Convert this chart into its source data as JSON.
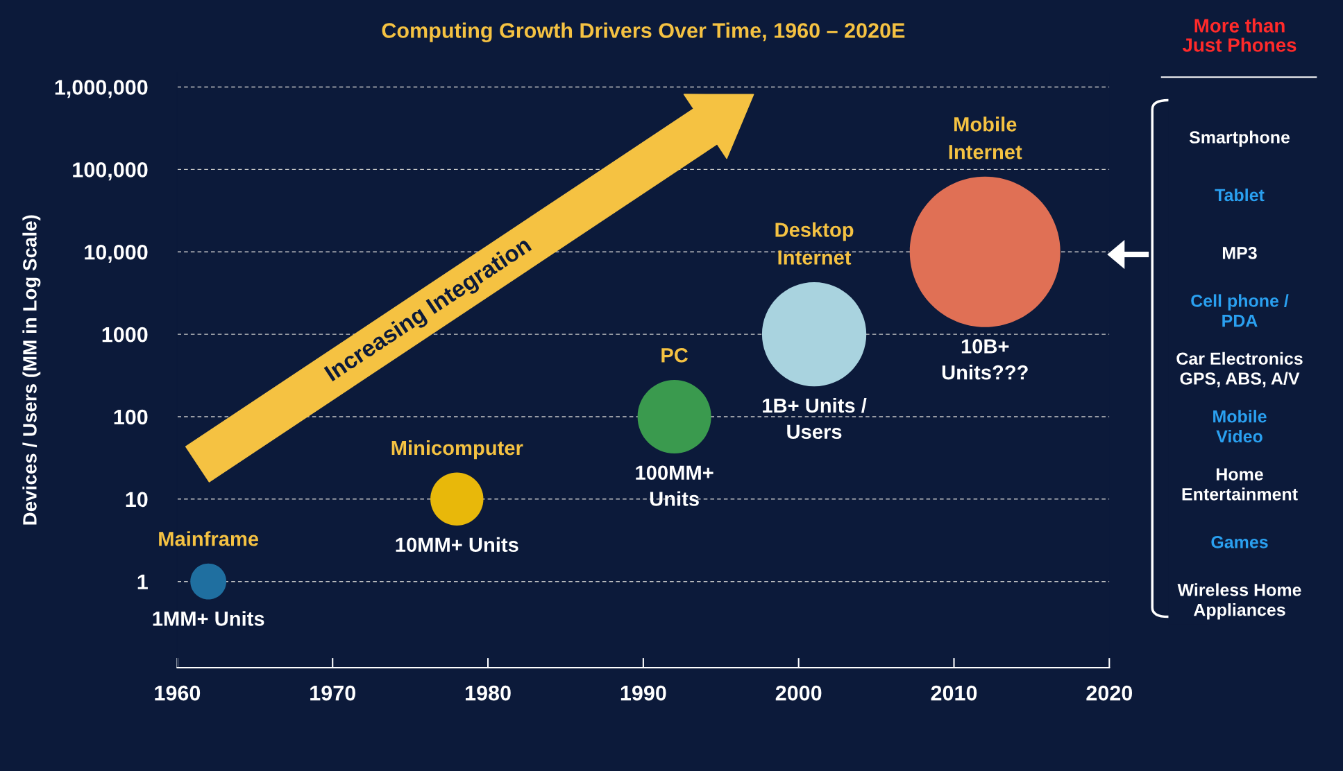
{
  "chart_data": {
    "type": "bubble",
    "title": "Computing Growth Drivers Over Time, 1960 – 2020E",
    "ylabel": "Devices / Users (MM in Log Scale)",
    "series": [
      {
        "name": "Mainframe",
        "color": "#1f6fa0",
        "x": [
          1962
        ],
        "values": [
          1
        ],
        "sizes": [
          0.057
        ]
      },
      {
        "name": "Minicomputer",
        "color": "#e8b80a",
        "x": [
          1978
        ],
        "values": [
          10
        ],
        "sizes": [
          0.124
        ]
      },
      {
        "name": "PC",
        "color": "#3a9a4e",
        "x": [
          1992
        ],
        "values": [
          100
        ],
        "sizes": [
          0.239
        ]
      },
      {
        "name": "Desktop\nInternet",
        "color": "#a9d3df",
        "x": [
          2001
        ],
        "values": [
          1000
        ],
        "sizes": [
          0.48
        ]
      },
      {
        "name": "Mobile\nInternet",
        "color": "#e07055",
        "x": [
          2012
        ],
        "values": [
          10000
        ],
        "sizes": [
          1
        ]
      }
    ],
    "log": "y",
    "xlim": [
      1960,
      2020
    ],
    "xticks": [
      1960,
      1970,
      1980,
      1990,
      2000,
      2010,
      2020
    ],
    "ylim": [
      0.09,
      1500000
    ],
    "yticks": [
      1,
      10,
      100,
      {
        "value": 1000,
        "label": "1000"
      },
      {
        "value": 10000,
        "label": "10,000"
      },
      {
        "value": 100000,
        "label": "100,000"
      },
      {
        "value": 1000000,
        "label": "1,000,000"
      }
    ],
    "grid": "y",
    "line_style": "dashed",
    "tick_labels": "xy",
    "annotations": [
      "1MM+ Units",
      "10MM+ Units",
      "100MM+\nUnits",
      "1B+ Units /\nUsers",
      "10B+\nUnits???",
      "Increasing Integration",
      "More than\nJust Phones",
      "Smartphone",
      "Tablet",
      "MP3",
      "Cell phone /\nPDA",
      "Car Electronics\nGPS, ABS, A/V",
      "Mobile\nVideo",
      "Home\nEntertainment",
      "Games",
      "Wireless Home\nAppliances"
    ]
  }
}
